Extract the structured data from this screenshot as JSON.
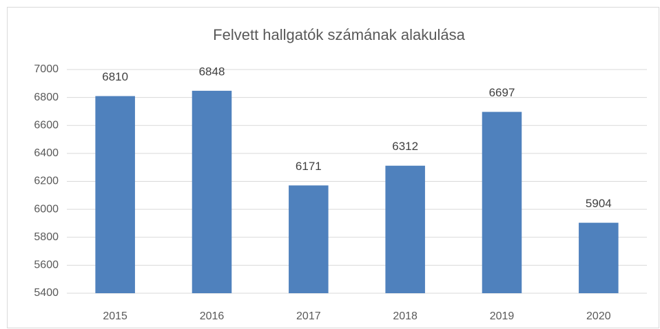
{
  "chart_data": {
    "type": "bar",
    "title": "Felvett hallgatók számának alakulása",
    "categories": [
      "2015",
      "2016",
      "2017",
      "2018",
      "2019",
      "2020"
    ],
    "values": [
      6810,
      6848,
      6171,
      6312,
      6697,
      5904
    ],
    "color": "#4f81bd",
    "ylim": [
      5400,
      7000
    ],
    "yticks": [
      5400,
      5600,
      5800,
      6000,
      6200,
      6400,
      6600,
      6800,
      7000
    ],
    "grid": true
  }
}
